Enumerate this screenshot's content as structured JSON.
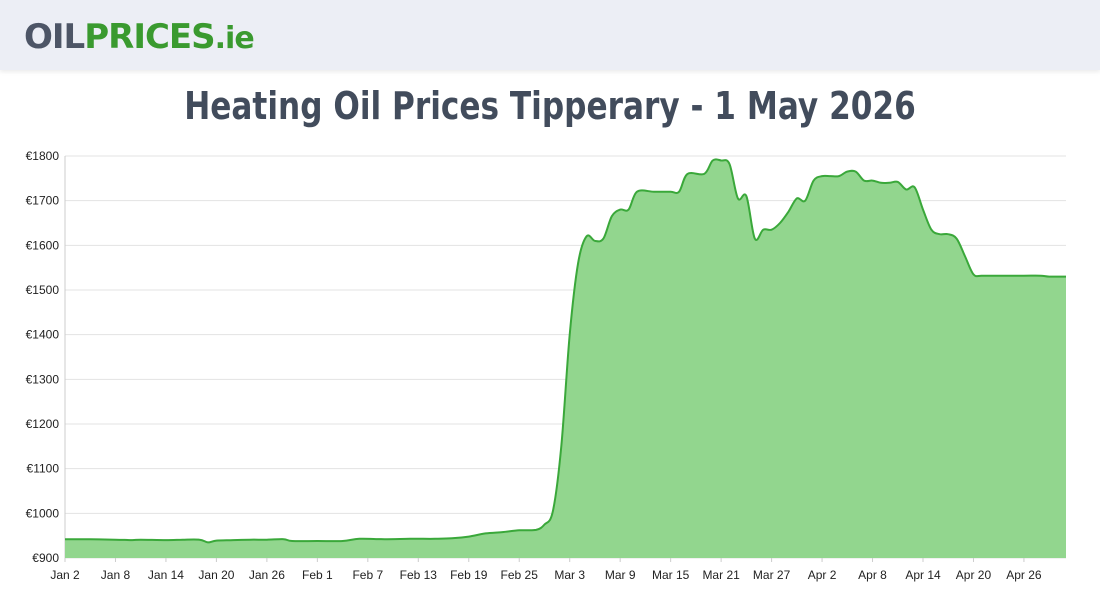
{
  "header": {
    "logo_oil": "OIL",
    "logo_prices": "PRICES",
    "logo_ie": ".ie"
  },
  "page": {
    "title": "Heating Oil Prices Tipperary - 1 May 2026"
  },
  "colors": {
    "header_bg": "#eceef5",
    "logo_gray": "#4d5566",
    "logo_green": "#3a9a2f",
    "line": "#3aa83a",
    "fill": "#92d68e",
    "title": "#424c5c",
    "grid": "#e3e3e3"
  },
  "chart_data": {
    "type": "area",
    "title": "",
    "xlabel": "",
    "ylabel": "",
    "ylim": [
      900,
      1800
    ],
    "y_ticks": [
      "€900",
      "€1000",
      "€1100",
      "€1200",
      "€1300",
      "€1400",
      "€1500",
      "€1600",
      "€1700",
      "€1800"
    ],
    "y_tick_values": [
      900,
      1000,
      1100,
      1200,
      1300,
      1400,
      1500,
      1600,
      1700,
      1800
    ],
    "x_range": [
      "2026-01-02",
      "2026-05-01"
    ],
    "x_ticks": [
      "Jan 2",
      "Jan 8",
      "Jan 14",
      "Jan 20",
      "Jan 26",
      "Feb 1",
      "Feb 7",
      "Feb 13",
      "Feb 19",
      "Feb 25",
      "Mar 3",
      "Mar 9",
      "Mar 15",
      "Mar 21",
      "Mar 27",
      "Apr 2",
      "Apr 8",
      "Apr 14",
      "Apr 20",
      "Apr 26"
    ],
    "x_tick_dates": [
      "2026-01-02",
      "2026-01-08",
      "2026-01-14",
      "2026-01-20",
      "2026-01-26",
      "2026-02-01",
      "2026-02-07",
      "2026-02-13",
      "2026-02-19",
      "2026-02-25",
      "2026-03-03",
      "2026-03-09",
      "2026-03-15",
      "2026-03-21",
      "2026-03-27",
      "2026-04-02",
      "2026-04-08",
      "2026-04-14",
      "2026-04-20",
      "2026-04-26"
    ],
    "grid": true,
    "legend": "none",
    "series": [
      {
        "points": [
          [
            "2026-01-02",
            942
          ],
          [
            "2026-01-05",
            942
          ],
          [
            "2026-01-08",
            941
          ],
          [
            "2026-01-10",
            940
          ],
          [
            "2026-01-11",
            941
          ],
          [
            "2026-01-14",
            940
          ],
          [
            "2026-01-16",
            941
          ],
          [
            "2026-01-18",
            941
          ],
          [
            "2026-01-19",
            935
          ],
          [
            "2026-01-20",
            939
          ],
          [
            "2026-01-22",
            940
          ],
          [
            "2026-01-24",
            941
          ],
          [
            "2026-01-26",
            941
          ],
          [
            "2026-01-28",
            942
          ],
          [
            "2026-01-29",
            938
          ],
          [
            "2026-02-01",
            938
          ],
          [
            "2026-02-04",
            938
          ],
          [
            "2026-02-06",
            943
          ],
          [
            "2026-02-09",
            942
          ],
          [
            "2026-02-12",
            943
          ],
          [
            "2026-02-15",
            943
          ],
          [
            "2026-02-17",
            944
          ],
          [
            "2026-02-19",
            948
          ],
          [
            "2026-02-21",
            955
          ],
          [
            "2026-02-23",
            958
          ],
          [
            "2026-02-25",
            962
          ],
          [
            "2026-02-27",
            963
          ],
          [
            "2026-02-28",
            975
          ],
          [
            "2026-03-01",
            1005
          ],
          [
            "2026-03-02",
            1150
          ],
          [
            "2026-03-03",
            1400
          ],
          [
            "2026-03-04",
            1560
          ],
          [
            "2026-03-05",
            1620
          ],
          [
            "2026-03-06",
            1610
          ],
          [
            "2026-03-07",
            1615
          ],
          [
            "2026-03-08",
            1665
          ],
          [
            "2026-03-09",
            1680
          ],
          [
            "2026-03-10",
            1680
          ],
          [
            "2026-03-11",
            1720
          ],
          [
            "2026-03-13",
            1720
          ],
          [
            "2026-03-15",
            1720
          ],
          [
            "2026-03-16",
            1720
          ],
          [
            "2026-03-17",
            1760
          ],
          [
            "2026-03-19",
            1760
          ],
          [
            "2026-03-20",
            1790
          ],
          [
            "2026-03-21",
            1790
          ],
          [
            "2026-03-22",
            1782
          ],
          [
            "2026-03-23",
            1705
          ],
          [
            "2026-03-24",
            1710
          ],
          [
            "2026-03-25",
            1615
          ],
          [
            "2026-03-26",
            1635
          ],
          [
            "2026-03-27",
            1635
          ],
          [
            "2026-03-28",
            1650
          ],
          [
            "2026-03-29",
            1675
          ],
          [
            "2026-03-30",
            1705
          ],
          [
            "2026-03-31",
            1700
          ],
          [
            "2026-04-01",
            1745
          ],
          [
            "2026-04-02",
            1755
          ],
          [
            "2026-04-03",
            1755
          ],
          [
            "2026-04-04",
            1755
          ],
          [
            "2026-04-05",
            1765
          ],
          [
            "2026-04-06",
            1765
          ],
          [
            "2026-04-07",
            1745
          ],
          [
            "2026-04-08",
            1745
          ],
          [
            "2026-04-09",
            1740
          ],
          [
            "2026-04-10",
            1740
          ],
          [
            "2026-04-11",
            1742
          ],
          [
            "2026-04-12",
            1725
          ],
          [
            "2026-04-13",
            1730
          ],
          [
            "2026-04-14",
            1680
          ],
          [
            "2026-04-15",
            1635
          ],
          [
            "2026-04-16",
            1625
          ],
          [
            "2026-04-17",
            1625
          ],
          [
            "2026-04-18",
            1615
          ],
          [
            "2026-04-19",
            1575
          ],
          [
            "2026-04-20",
            1535
          ],
          [
            "2026-04-21",
            1532
          ],
          [
            "2026-04-23",
            1532
          ],
          [
            "2026-04-26",
            1532
          ],
          [
            "2026-04-28",
            1532
          ],
          [
            "2026-04-29",
            1530
          ],
          [
            "2026-05-01",
            1530
          ]
        ]
      }
    ]
  }
}
